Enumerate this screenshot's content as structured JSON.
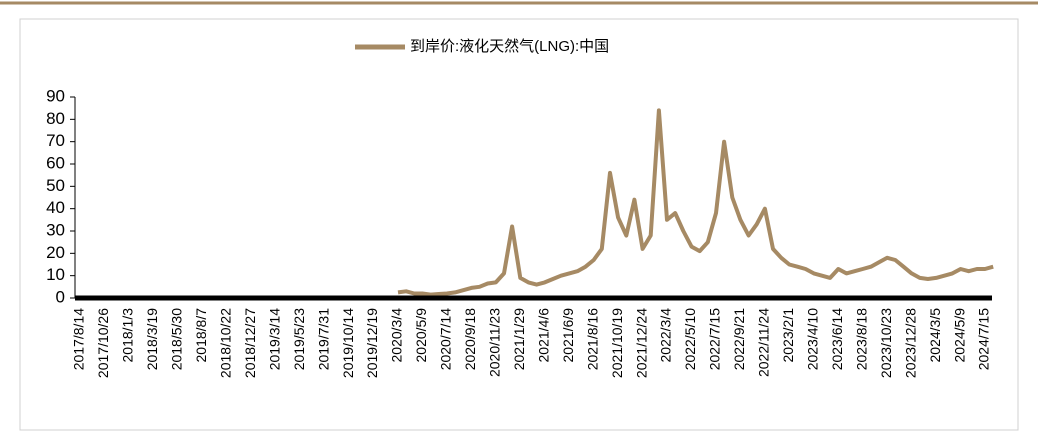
{
  "chart_data": {
    "type": "line",
    "series": [
      {
        "name": "到岸价:液化天然气(LNG):中国",
        "color": "#a68a64",
        "values": [
          null,
          null,
          null,
          null,
          null,
          null,
          null,
          null,
          null,
          null,
          null,
          null,
          null,
          null,
          null,
          null,
          null,
          null,
          null,
          null,
          null,
          null,
          null,
          null,
          null,
          null,
          null,
          null,
          null,
          null,
          null,
          null,
          null,
          null,
          null,
          null,
          null,
          null,
          null,
          2.5,
          3,
          2,
          2,
          1.5,
          1.8,
          2,
          2.5,
          3.5,
          4.5,
          5,
          6.5,
          7,
          11,
          32,
          9,
          7,
          6,
          7,
          8.5,
          10,
          11,
          12,
          14,
          17,
          22,
          56,
          36,
          28,
          44,
          22,
          28,
          84,
          35,
          38,
          30,
          23,
          21,
          25,
          38,
          70,
          45,
          35,
          28,
          33,
          40,
          22,
          18,
          15,
          14,
          13,
          11,
          10,
          9,
          13,
          11,
          12,
          13,
          14,
          16,
          18,
          17,
          14,
          11,
          9,
          8.5,
          9,
          10,
          11,
          13,
          12,
          13,
          13,
          14
        ]
      }
    ],
    "categories": [
      "2017/8/14",
      null,
      null,
      "2017/10/26",
      null,
      null,
      "2018/1/3",
      null,
      null,
      "2018/3/19",
      null,
      null,
      "2018/5/30",
      null,
      null,
      "2018/8/7",
      null,
      null,
      "2018/10/22",
      null,
      null,
      "2018/12/27",
      null,
      null,
      "2019/3/14",
      null,
      null,
      "2019/5/23",
      null,
      null,
      "2019/7/31",
      null,
      null,
      "2019/10/14",
      null,
      null,
      "2019/12/19",
      null,
      null,
      "2020/3/4",
      null,
      null,
      "2020/5/9",
      null,
      null,
      "2020/7/14",
      null,
      null,
      "2020/9/18",
      null,
      null,
      "2020/11/23",
      null,
      null,
      "2021/1/29",
      null,
      null,
      "2021/4/6",
      null,
      null,
      "2021/6/9",
      null,
      null,
      "2021/8/16",
      null,
      null,
      "2021/10/19",
      null,
      null,
      "2021/12/24",
      null,
      null,
      "2022/3/4",
      null,
      null,
      "2022/5/10",
      null,
      null,
      "2022/7/15",
      null,
      null,
      "2022/9/21",
      null,
      null,
      "2022/11/24",
      null,
      null,
      "2023/2/1",
      null,
      null,
      "2023/4/10",
      null,
      null,
      "2023/6/14",
      null,
      null,
      "2023/8/18",
      null,
      null,
      "2023/10/23",
      null,
      null,
      "2023/12/28",
      null,
      null,
      "2024/3/5",
      null,
      null,
      "2024/5/9",
      null,
      null,
      "2024/7/15",
      null
    ],
    "ylim": [
      0,
      90
    ],
    "yticks": [
      0,
      10,
      20,
      30,
      40,
      50,
      60,
      70,
      80,
      90
    ],
    "legend": "top"
  }
}
